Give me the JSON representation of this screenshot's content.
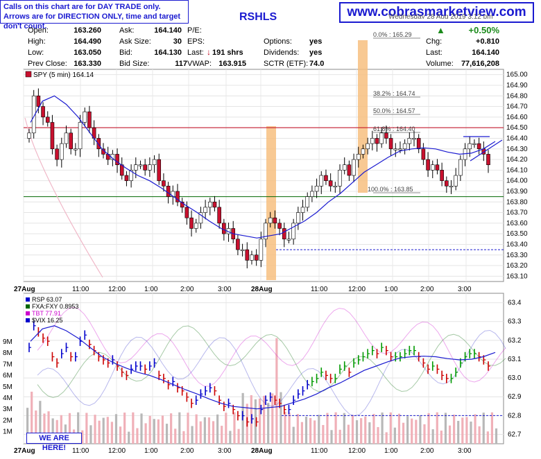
{
  "notice": {
    "line1": "Calls on this chart are for DAY TRADE only.",
    "line2": "Arrows are for DIRECTION ONLY, time and target don't count."
  },
  "site": "www.cobrasmarketview.com",
  "ticker_partial": "RSHLS",
  "date_partial": "Wednesday 28 Aug 2019 3:12 pm",
  "header": {
    "open_label": "Open:",
    "open": "163.260",
    "high_label": "High:",
    "high": "164.490",
    "low_label": "Low:",
    "low": "163.050",
    "prev_label": "Prev Close:",
    "prev": "163.330",
    "ask_label": "Ask:",
    "ask": "164.140",
    "asksize_label": "Ask Size:",
    "asksize": "30",
    "bid_label": "Bid:",
    "bid": "164.130",
    "bidsize_label": "Bid Size:",
    "bidsize": "117",
    "pe_label": "P/E:",
    "eps_label": "EPS:",
    "last_label": "Last:",
    "last_size": "191 shrs",
    "vwap_label": "VWAP:",
    "vwap": "163.915",
    "options_label": "Options:",
    "options": "yes",
    "dividends_label": "Dividends:",
    "dividends": "yes",
    "sctr_label": "SCTR (ETF):",
    "sctr": "74.0",
    "pct": "+0.50%",
    "chg_label": "Chg:",
    "chg": "+0.810",
    "last2_label": "Last:",
    "last2": "164.140",
    "volume_label": "Volume:",
    "volume": "77,616,208"
  },
  "we_are_here": "WE ARE HERE!",
  "chart_data": [
    {
      "type": "candlestick",
      "legend": "SPY (5 min) 164.14",
      "y_ticks": [
        "165.00",
        "164.90",
        "164.80",
        "164.70",
        "164.60",
        "164.50",
        "164.40",
        "164.30",
        "164.20",
        "164.10",
        "164.00",
        "163.90",
        "163.80",
        "163.70",
        "163.60",
        "163.50",
        "163.40",
        "163.30",
        "163.20",
        "163.10"
      ],
      "ylim": [
        163.05,
        165.05
      ],
      "x_ticks": [
        "27Aug",
        "11:00",
        "12:00",
        "1:00",
        "2:00",
        "3:00",
        "28Aug",
        "11:00",
        "12:00",
        "1:00",
        "2:00",
        "3:00"
      ],
      "fib_labels": [
        "0.0% : 165.29",
        "38.2% : 164.74",
        "50.0% : 164.57",
        "61.8% : 164.40",
        "100.0% : 163.85"
      ],
      "levels": [
        164.5,
        163.85,
        163.35
      ],
      "ma": [
        164.55,
        164.75,
        164.8,
        164.72,
        164.6,
        164.45,
        164.3,
        164.2,
        164.12,
        164.05,
        164.0,
        163.93,
        163.85,
        163.77,
        163.7,
        163.62,
        163.55,
        163.5,
        163.48,
        163.46,
        163.48,
        163.5,
        163.56,
        163.62,
        163.7,
        163.8,
        163.88,
        163.98,
        164.08,
        164.15,
        164.22,
        164.28,
        164.3,
        164.31,
        164.3,
        164.27,
        164.25,
        164.26,
        164.3,
        164.37
      ],
      "closes": [
        164.45,
        164.8,
        164.7,
        164.6,
        164.55,
        164.3,
        164.2,
        164.35,
        164.45,
        164.3,
        164.3,
        164.55,
        164.65,
        164.5,
        164.4,
        164.3,
        164.25,
        164.2,
        164.25,
        164.15,
        164.05,
        164.0,
        164.1,
        164.15,
        164.15,
        164.1,
        164.15,
        164.2,
        164.0,
        163.95,
        163.85,
        163.9,
        163.8,
        163.75,
        163.65,
        163.55,
        163.6,
        163.7,
        163.75,
        163.8,
        163.75,
        163.6,
        163.5,
        163.55,
        163.45,
        163.35,
        163.35,
        163.25,
        163.3,
        163.25,
        163.45,
        163.6,
        163.65,
        163.6,
        163.55,
        163.45,
        163.45,
        163.6,
        163.7,
        163.75,
        163.85,
        163.9,
        163.95,
        164.05,
        164.0,
        163.95,
        163.95,
        164.1,
        164.15,
        164.05,
        164.2,
        164.25,
        164.3,
        164.35,
        164.4,
        164.35,
        164.45,
        164.4,
        164.3,
        164.3,
        164.3,
        164.35,
        164.4,
        164.4,
        164.3,
        164.2,
        164.1,
        164.15,
        164.1,
        164.0,
        163.95,
        163.95,
        164.05,
        164.2,
        164.3,
        164.35,
        164.35,
        164.3,
        164.25,
        164.15
      ],
      "day2_start_index": 48
    },
    {
      "type": "line",
      "series": [
        {
          "name": "RSP 63.07",
          "color": "#0000cc"
        },
        {
          "name": "FXA:FXY 0.8953",
          "color": "#006600"
        },
        {
          "name": "TBT 77.91",
          "color": "#cc00cc"
        },
        {
          "name": "$VIX 16.25",
          "color": "#0000cc"
        }
      ],
      "y_ticks": [
        "63.4",
        "63.3",
        "63.2",
        "63.1",
        "63.0",
        "62.9",
        "62.8",
        "62.7"
      ],
      "ylim": [
        62.65,
        63.45
      ],
      "vol_ticks": [
        "9M",
        "8M",
        "7M",
        "6M",
        "5M",
        "4M",
        "3M",
        "2M",
        "1M"
      ],
      "x_ticks": [
        "27Aug",
        "11:00",
        "12:00",
        "1:00",
        "2:00",
        "3:00",
        "28Aug",
        "11:00",
        "12:00",
        "1:00",
        "2:00",
        "3:00"
      ],
      "level": 62.8
    }
  ]
}
